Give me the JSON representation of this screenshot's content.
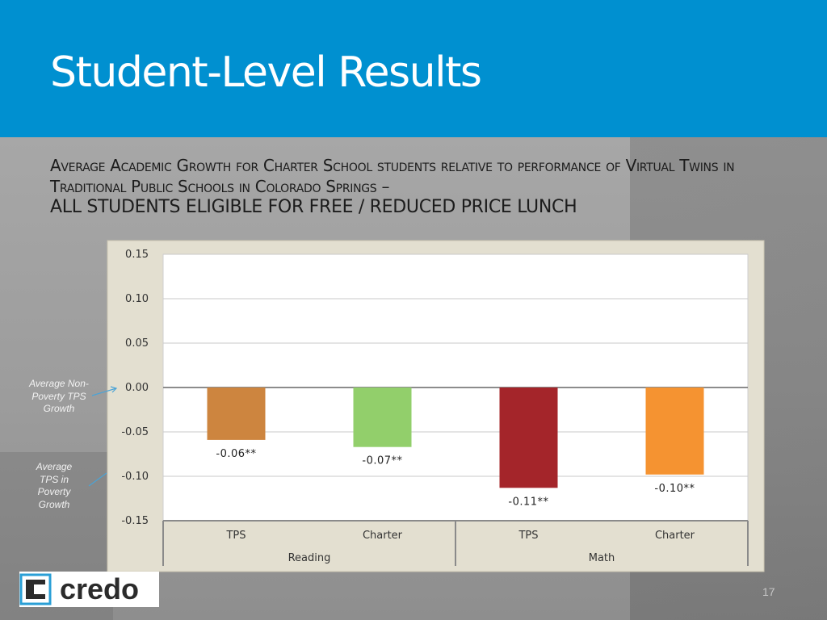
{
  "header": {
    "title": "Student-Level Results",
    "color": "#0090d0"
  },
  "subtitle": {
    "line1": "Average Academic Growth for Charter School students relative to performance of Virtual Twins in Traditional Public Schools in Colorado Springs –",
    "line2": "ALL STUDENTS ELIGIBLE FOR FREE / REDUCED PRICE LUNCH"
  },
  "annotations": {
    "non_poverty": "Average Non-Poverty TPS Growth",
    "poverty": "Average TPS in Poverty Growth"
  },
  "logo": {
    "text": "credo",
    "icon": "credo-c-icon"
  },
  "page_number": "17",
  "chart_data": {
    "type": "bar",
    "categories": [
      "TPS",
      "Charter",
      "TPS",
      "Charter"
    ],
    "groups": [
      {
        "name": "Reading",
        "categories": [
          "TPS",
          "Charter"
        ]
      },
      {
        "name": "Math",
        "categories": [
          "TPS",
          "Charter"
        ]
      }
    ],
    "values": [
      -0.06,
      -0.07,
      -0.11,
      -0.1
    ],
    "data_labels": [
      "-0.06**",
      "-0.07**",
      "-0.11**",
      "-0.10**"
    ],
    "precise_values": [
      -0.059,
      -0.067,
      -0.113,
      -0.098
    ],
    "colors": [
      "#cd853f",
      "#92cf6b",
      "#a4252a",
      "#f59331"
    ],
    "ylim": [
      -0.15,
      0.15
    ],
    "yticks": [
      "0.15",
      "0.10",
      "0.05",
      "0.00",
      "-0.05",
      "-0.10",
      "-0.15"
    ],
    "ytick_values": [
      0.15,
      0.1,
      0.05,
      0.0,
      -0.05,
      -0.1,
      -0.15
    ],
    "grid": true,
    "title": "",
    "xlabel": "",
    "ylabel": ""
  }
}
